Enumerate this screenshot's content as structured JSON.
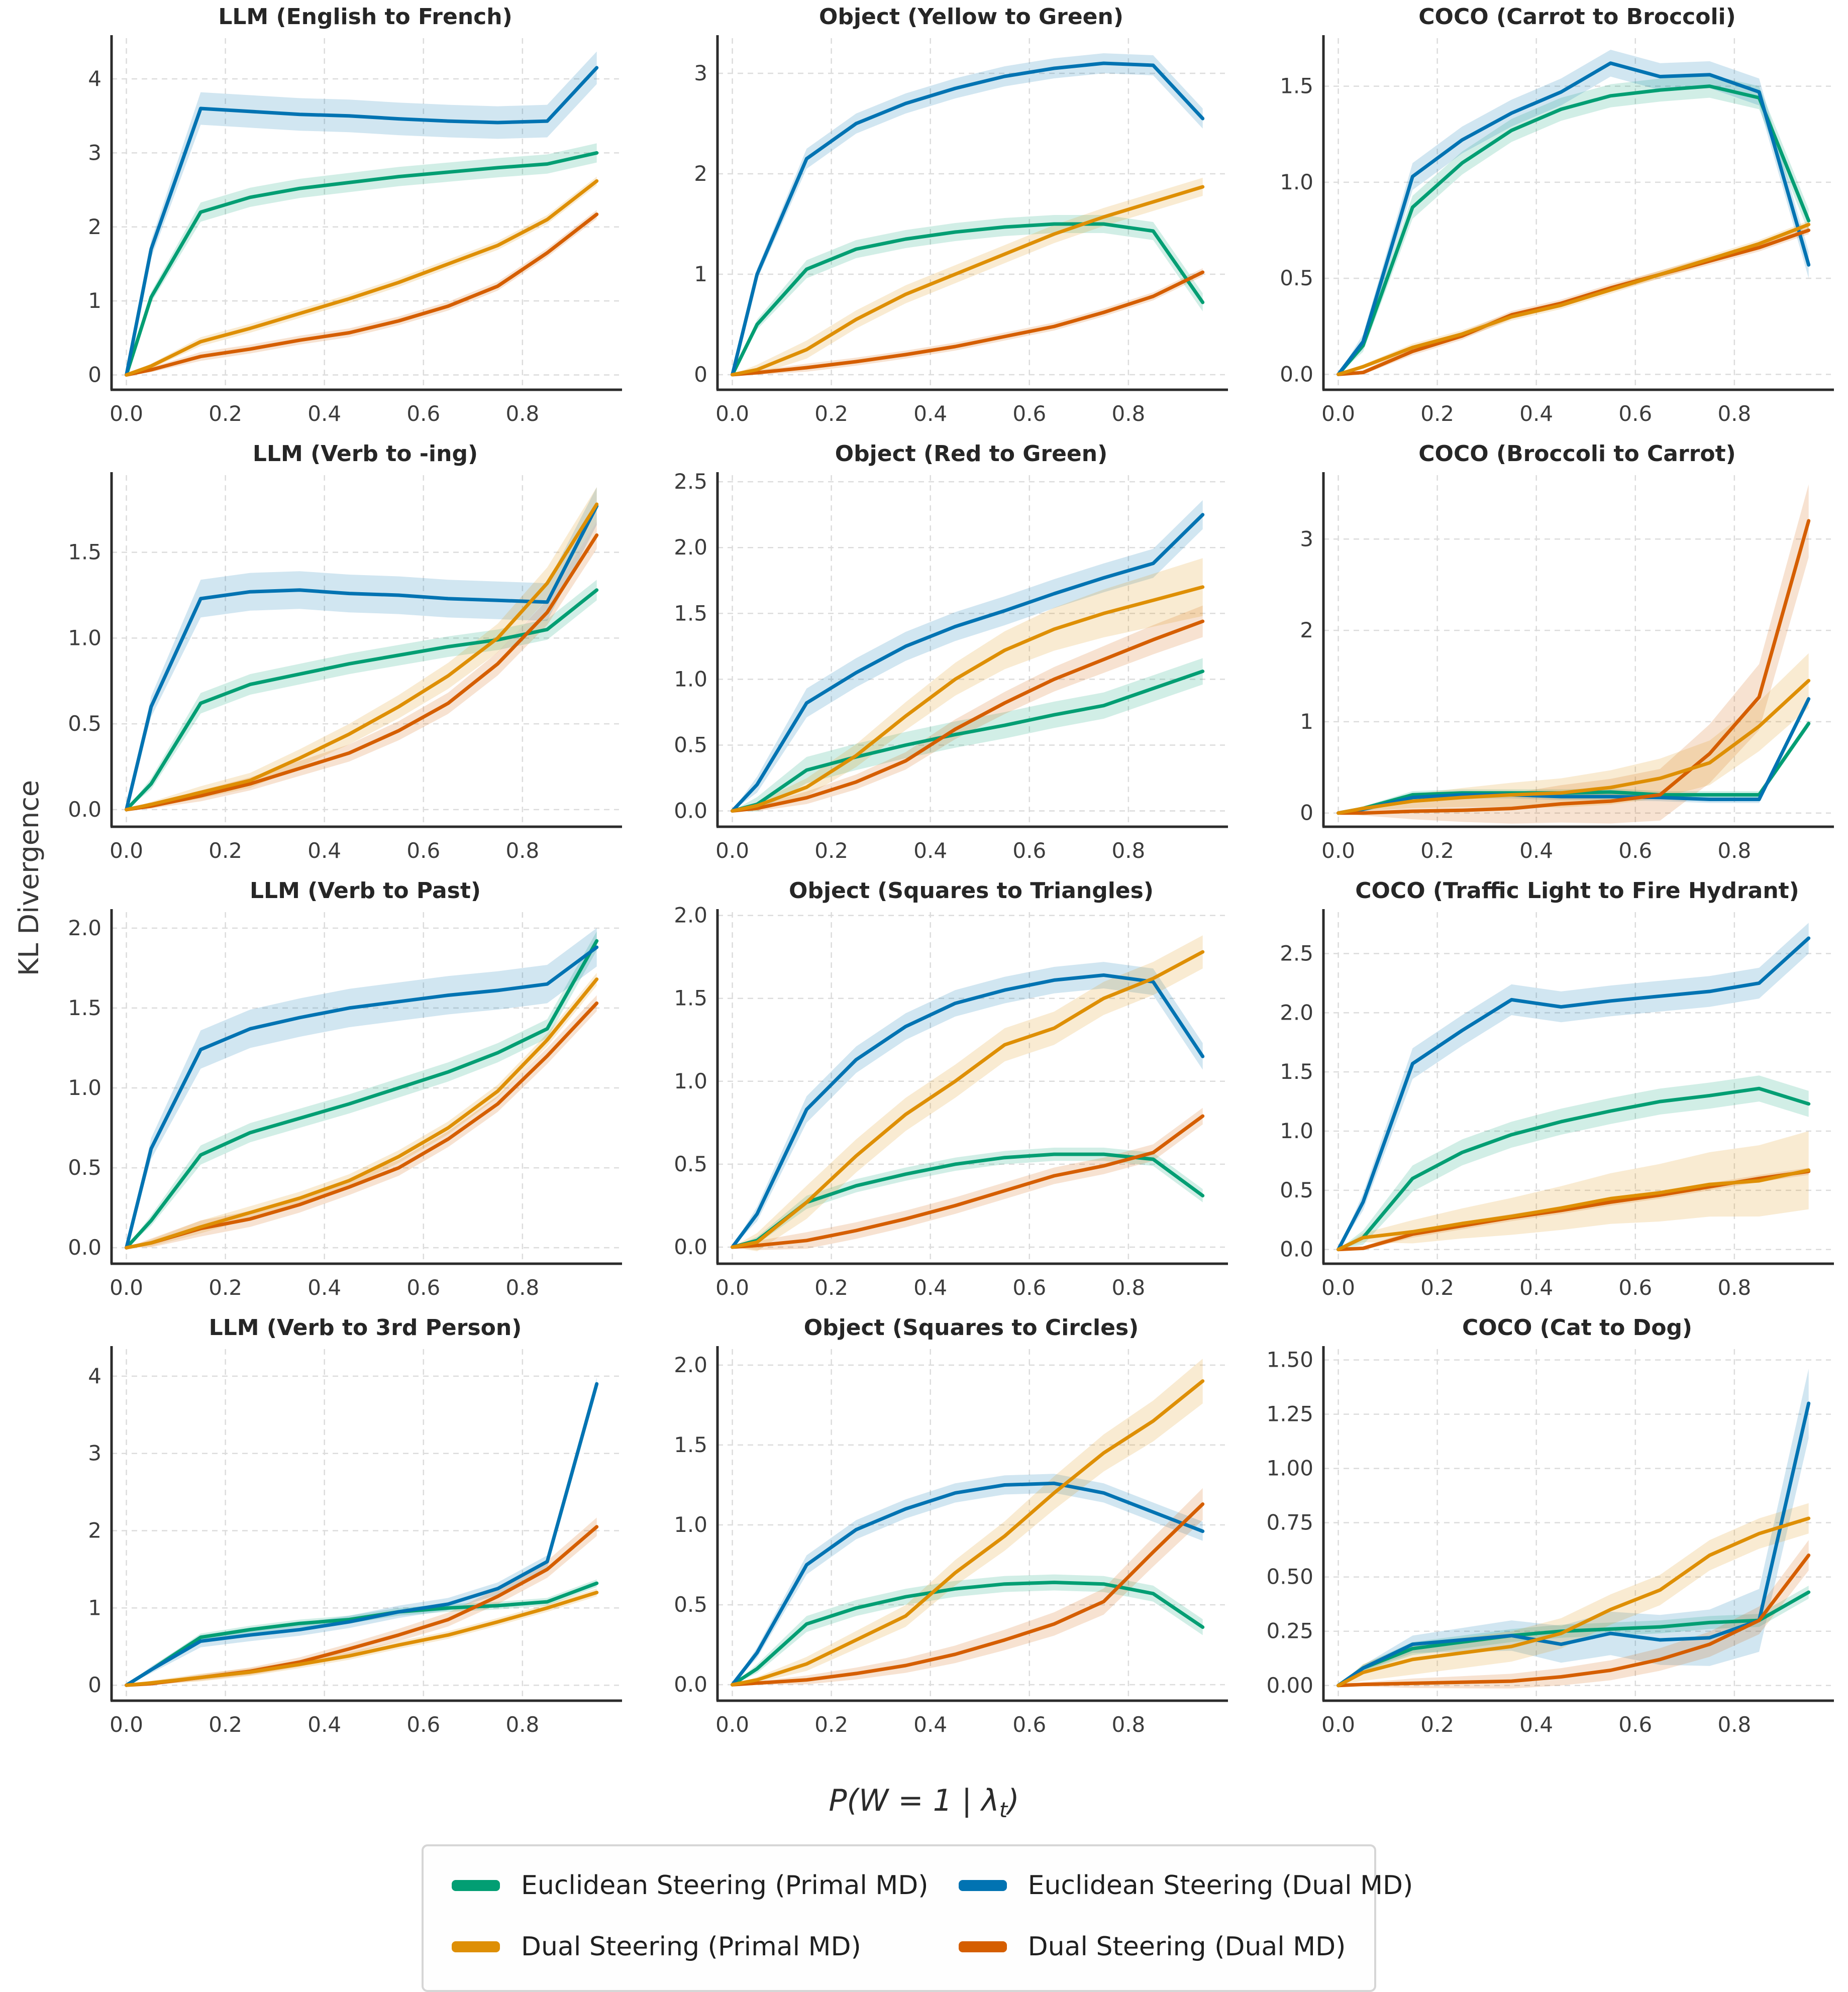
{
  "figure": {
    "ylabel": "KL Divergence",
    "xlabel": {
      "pre": "P(W = 1 | λ",
      "sub": "t",
      "post": ")"
    },
    "colors": {
      "green": "#029e73",
      "gold": "#de8f05",
      "blue": "#0173b2",
      "red": "#d55e00"
    },
    "legend": [
      {
        "label": "Euclidean Steering (Primal MD)",
        "color": "green"
      },
      {
        "label": "Euclidean Steering (Dual MD)",
        "color": "blue"
      },
      {
        "label": "Dual Steering (Primal MD)",
        "color": "gold"
      },
      {
        "label": "Dual Steering (Dual MD)",
        "color": "red"
      }
    ],
    "chart_data": {
      "type": "line",
      "x": [
        0.0,
        0.05,
        0.15,
        0.25,
        0.35,
        0.45,
        0.55,
        0.65,
        0.75,
        0.85,
        0.95
      ],
      "xticks": [
        "0.0",
        "0.2",
        "0.4",
        "0.6",
        "0.8"
      ],
      "xlim": [
        -0.03,
        0.995
      ],
      "grid": true,
      "legend_position": "bottom",
      "charts": [
        {
          "title": "LLM (English to French)",
          "ylim": [
            -0.2,
            4.55
          ],
          "yticks": [
            "0",
            "1",
            "2",
            "3",
            "4"
          ],
          "series": {
            "green": [
              0,
              1.05,
              2.2,
              2.4,
              2.52,
              2.6,
              2.68,
              2.74,
              2.8,
              2.85,
              3.0
            ],
            "gold": [
              0,
              0.12,
              0.45,
              0.63,
              0.83,
              1.03,
              1.25,
              1.5,
              1.75,
              2.1,
              2.62
            ],
            "blue": [
              0,
              1.7,
              3.6,
              3.56,
              3.52,
              3.5,
              3.46,
              3.43,
              3.41,
              3.43,
              4.15
            ],
            "red": [
              0,
              0.07,
              0.25,
              0.35,
              0.47,
              0.57,
              0.73,
              0.93,
              1.2,
              1.65,
              2.17
            ]
          },
          "bands": {
            "green": 0.13,
            "gold": 0.06,
            "blue": 0.22,
            "red": 0.06
          }
        },
        {
          "title": "Object (Yellow to Green)",
          "ylim": [
            -0.15,
            3.35
          ],
          "yticks": [
            "0",
            "1",
            "2",
            "3"
          ],
          "series": {
            "green": [
              0,
              0.5,
              1.05,
              1.25,
              1.35,
              1.42,
              1.47,
              1.5,
              1.5,
              1.43,
              0.72
            ],
            "gold": [
              0,
              0.05,
              0.25,
              0.55,
              0.8,
              1.0,
              1.2,
              1.4,
              1.57,
              1.72,
              1.87
            ],
            "blue": [
              0,
              1.0,
              2.15,
              2.5,
              2.7,
              2.85,
              2.97,
              3.05,
              3.1,
              3.08,
              2.55
            ],
            "red": [
              0,
              0.02,
              0.07,
              0.13,
              0.2,
              0.28,
              0.38,
              0.48,
              0.62,
              0.78,
              1.02
            ]
          },
          "bands": {
            "green": 0.09,
            "gold": 0.09,
            "blue": 0.1,
            "red": 0.04
          }
        },
        {
          "title": "COCO (Carrot to Broccoli)",
          "ylim": [
            -0.08,
            1.75
          ],
          "yticks": [
            "0.0",
            "0.5",
            "1.0",
            "1.5"
          ],
          "series": {
            "green": [
              0,
              0.15,
              0.87,
              1.1,
              1.27,
              1.38,
              1.45,
              1.48,
              1.5,
              1.44,
              0.8
            ],
            "gold": [
              0,
              0.04,
              0.14,
              0.21,
              0.3,
              0.36,
              0.44,
              0.52,
              0.6,
              0.68,
              0.78
            ],
            "blue": [
              0,
              0.17,
              1.03,
              1.22,
              1.36,
              1.47,
              1.62,
              1.55,
              1.56,
              1.47,
              0.57
            ],
            "red": [
              0,
              0.01,
              0.12,
              0.2,
              0.31,
              0.37,
              0.45,
              0.52,
              0.59,
              0.66,
              0.75
            ]
          },
          "bands": {
            "green": 0.06,
            "gold": 0.02,
            "blue": 0.07,
            "red": 0.02
          }
        },
        {
          "title": "LLM (Verb to -ing)",
          "ylim": [
            -0.1,
            1.95
          ],
          "yticks": [
            "0.0",
            "0.5",
            "1.0",
            "1.5"
          ],
          "series": {
            "green": [
              0,
              0.15,
              0.62,
              0.73,
              0.79,
              0.85,
              0.9,
              0.95,
              0.99,
              1.05,
              1.28
            ],
            "gold": [
              0,
              0.03,
              0.1,
              0.17,
              0.3,
              0.44,
              0.6,
              0.78,
              1.0,
              1.32,
              1.78
            ],
            "blue": [
              0,
              0.6,
              1.23,
              1.27,
              1.28,
              1.26,
              1.25,
              1.23,
              1.22,
              1.21,
              1.77
            ],
            "red": [
              0,
              0.02,
              0.08,
              0.15,
              0.24,
              0.33,
              0.46,
              0.62,
              0.85,
              1.15,
              1.6
            ]
          },
          "bands": {
            "green": 0.06,
            "gold": [
              0.02,
              0.1
            ],
            "blue": 0.11,
            "red": [
              0.02,
              0.08
            ]
          }
        },
        {
          "title": "Object (Red to Green)",
          "ylim": [
            -0.12,
            2.55
          ],
          "yticks": [
            "0.0",
            "0.5",
            "1.0",
            "1.5",
            "2.0",
            "2.5"
          ],
          "series": {
            "green": [
              0,
              0.05,
              0.31,
              0.41,
              0.5,
              0.58,
              0.65,
              0.73,
              0.8,
              0.93,
              1.06
            ],
            "gold": [
              0,
              0.04,
              0.18,
              0.42,
              0.72,
              1.0,
              1.22,
              1.38,
              1.5,
              1.6,
              1.7
            ],
            "blue": [
              0,
              0.2,
              0.82,
              1.05,
              1.25,
              1.4,
              1.52,
              1.65,
              1.77,
              1.88,
              2.25
            ],
            "red": [
              0,
              0.02,
              0.1,
              0.22,
              0.38,
              0.62,
              0.82,
              1.0,
              1.15,
              1.3,
              1.44
            ]
          },
          "bands": {
            "green": 0.1,
            "gold": [
              0.03,
              0.22
            ],
            "blue": 0.11,
            "red": [
              0.03,
              0.12
            ]
          }
        },
        {
          "title": "COCO (Broccoli to Carrot)",
          "ylim": [
            -0.15,
            3.7
          ],
          "yticks": [
            "0",
            "1",
            "2",
            "3"
          ],
          "series": {
            "green": [
              0,
              0.05,
              0.2,
              0.22,
              0.22,
              0.22,
              0.23,
              0.2,
              0.2,
              0.2,
              0.98
            ],
            "gold": [
              0,
              0.05,
              0.13,
              0.17,
              0.2,
              0.22,
              0.28,
              0.38,
              0.55,
              0.95,
              1.45
            ],
            "blue": [
              0,
              0.04,
              0.17,
              0.2,
              0.2,
              0.18,
              0.18,
              0.17,
              0.15,
              0.15,
              1.25
            ],
            "red": [
              0,
              0.0,
              0.02,
              0.03,
              0.05,
              0.1,
              0.13,
              0.2,
              0.65,
              1.27,
              3.2
            ]
          },
          "bands": {
            "green": 0.04,
            "gold": [
              0.02,
              0.3
            ],
            "blue": 0.04,
            "red": [
              0.01,
              0.4
            ]
          }
        },
        {
          "title": "LLM (Verb to Past)",
          "ylim": [
            -0.1,
            2.1
          ],
          "yticks": [
            "0.0",
            "0.5",
            "1.0",
            "1.5",
            "2.0"
          ],
          "series": {
            "green": [
              0,
              0.17,
              0.58,
              0.72,
              0.81,
              0.9,
              1.0,
              1.1,
              1.22,
              1.37,
              1.92
            ],
            "gold": [
              0,
              0.03,
              0.13,
              0.22,
              0.31,
              0.42,
              0.57,
              0.75,
              0.98,
              1.3,
              1.68
            ],
            "blue": [
              0,
              0.62,
              1.24,
              1.37,
              1.44,
              1.5,
              1.54,
              1.58,
              1.61,
              1.65,
              1.88
            ],
            "red": [
              0,
              0.03,
              0.12,
              0.18,
              0.27,
              0.38,
              0.5,
              0.68,
              0.9,
              1.2,
              1.53
            ]
          },
          "bands": {
            "green": 0.06,
            "gold": 0.04,
            "blue": 0.12,
            "red": 0.05
          }
        },
        {
          "title": "Object (Squares to Triangles)",
          "ylim": [
            -0.1,
            2.02
          ],
          "yticks": [
            "0.0",
            "0.5",
            "1.0",
            "1.5",
            "2.0"
          ],
          "series": {
            "green": [
              0,
              0.04,
              0.27,
              0.37,
              0.44,
              0.5,
              0.54,
              0.56,
              0.56,
              0.53,
              0.31
            ],
            "gold": [
              0,
              0.03,
              0.27,
              0.55,
              0.8,
              1.0,
              1.22,
              1.32,
              1.5,
              1.62,
              1.78
            ],
            "blue": [
              0,
              0.2,
              0.83,
              1.13,
              1.33,
              1.47,
              1.55,
              1.61,
              1.64,
              1.6,
              1.15
            ],
            "red": [
              0,
              0.01,
              0.04,
              0.1,
              0.17,
              0.25,
              0.34,
              0.43,
              0.49,
              0.57,
              0.79
            ]
          },
          "bands": {
            "green": 0.04,
            "gold": 0.1,
            "blue": 0.08,
            "red": 0.05
          }
        },
        {
          "title": "COCO (Traffic Light to Fire Hydrant)",
          "ylim": [
            -0.12,
            2.85
          ],
          "yticks": [
            "0.0",
            "0.5",
            "1.0",
            "1.5",
            "2.0",
            "2.5"
          ],
          "series": {
            "green": [
              0,
              0.1,
              0.6,
              0.82,
              0.97,
              1.08,
              1.17,
              1.25,
              1.3,
              1.36,
              1.23
            ],
            "gold": [
              0,
              0.1,
              0.15,
              0.22,
              0.28,
              0.35,
              0.43,
              0.48,
              0.55,
              0.58,
              0.67
            ],
            "blue": [
              0,
              0.4,
              1.57,
              1.85,
              2.11,
              2.05,
              2.1,
              2.14,
              2.18,
              2.25,
              2.63
            ],
            "red": [
              0,
              0.01,
              0.13,
              0.2,
              0.27,
              0.33,
              0.4,
              0.46,
              0.53,
              0.6,
              0.66
            ]
          },
          "bands": {
            "green": 0.11,
            "gold": [
              0.04,
              0.33
            ],
            "blue": 0.13,
            "red": 0.03
          }
        },
        {
          "title": "LLM (Verb to 3rd Person)",
          "ylim": [
            -0.2,
            4.35
          ],
          "yticks": [
            "0",
            "1",
            "2",
            "3",
            "4"
          ],
          "series": {
            "green": [
              0,
              0.2,
              0.62,
              0.72,
              0.8,
              0.85,
              0.95,
              1.0,
              1.03,
              1.08,
              1.32
            ],
            "gold": [
              0,
              0.03,
              0.1,
              0.17,
              0.27,
              0.38,
              0.52,
              0.65,
              0.82,
              1.0,
              1.2
            ],
            "blue": [
              0,
              0.2,
              0.57,
              0.65,
              0.72,
              0.82,
              0.95,
              1.05,
              1.25,
              1.6,
              3.9
            ],
            "red": [
              0,
              0.02,
              0.1,
              0.18,
              0.3,
              0.47,
              0.65,
              0.85,
              1.15,
              1.5,
              2.05
            ]
          },
          "bands": {
            "green": 0.05,
            "gold": 0.05,
            "blue": 0.08,
            "red": [
              0.02,
              0.12
            ]
          }
        },
        {
          "title": "Object (Squares to Circles)",
          "ylim": [
            -0.1,
            2.1
          ],
          "yticks": [
            "0.0",
            "0.5",
            "1.0",
            "1.5",
            "2.0"
          ],
          "series": {
            "green": [
              0,
              0.1,
              0.38,
              0.48,
              0.55,
              0.6,
              0.63,
              0.64,
              0.63,
              0.57,
              0.36
            ],
            "gold": [
              0,
              0.03,
              0.13,
              0.28,
              0.43,
              0.7,
              0.93,
              1.2,
              1.45,
              1.65,
              1.9
            ],
            "blue": [
              0,
              0.2,
              0.75,
              0.97,
              1.1,
              1.2,
              1.25,
              1.26,
              1.2,
              1.08,
              0.96
            ],
            "red": [
              0,
              0.01,
              0.03,
              0.07,
              0.12,
              0.19,
              0.28,
              0.38,
              0.52,
              0.83,
              1.13
            ]
          },
          "bands": {
            "green": 0.05,
            "gold": [
              0.02,
              0.14
            ],
            "blue": 0.06,
            "red": [
              0.01,
              0.1
            ]
          }
        },
        {
          "title": "COCO (Cat to Dog)",
          "ylim": [
            -0.07,
            1.55
          ],
          "yticks": [
            "0.00",
            "0.25",
            "0.50",
            "0.75",
            "1.00",
            "1.25",
            "1.50"
          ],
          "series": {
            "green": [
              0,
              0.08,
              0.17,
              0.2,
              0.23,
              0.25,
              0.26,
              0.27,
              0.29,
              0.3,
              0.43
            ],
            "gold": [
              0,
              0.06,
              0.12,
              0.15,
              0.18,
              0.24,
              0.35,
              0.44,
              0.6,
              0.7,
              0.77
            ],
            "blue": [
              0,
              0.08,
              0.19,
              0.21,
              0.23,
              0.19,
              0.24,
              0.21,
              0.22,
              0.3,
              1.3
            ],
            "red": [
              0,
              0.005,
              0.01,
              0.015,
              0.02,
              0.04,
              0.07,
              0.12,
              0.19,
              0.3,
              0.6
            ]
          },
          "bands": {
            "green": 0.03,
            "gold": 0.07,
            "blue": [
              0.01,
              0.16
            ],
            "red": [
              0.01,
              0.07
            ]
          }
        }
      ]
    }
  }
}
